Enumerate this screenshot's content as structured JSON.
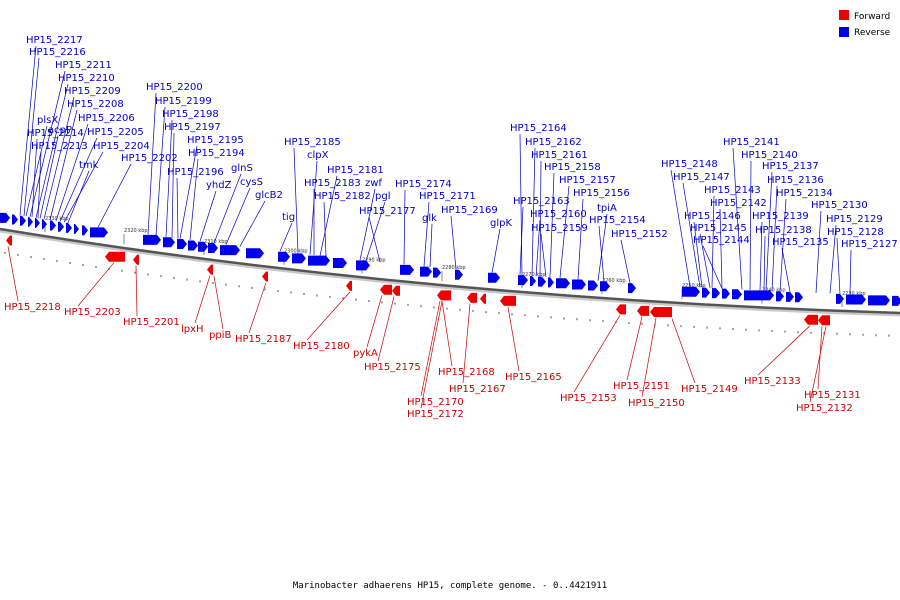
{
  "footer": "Marinobacter adhaerens HP15, complete genome. - 0..4421911",
  "legend": [
    {
      "label": "Forward",
      "color": "#ee0000"
    },
    {
      "label": "Reverse",
      "color": "#0000ee"
    }
  ],
  "colors": {
    "forward": "#ee0000",
    "reverse": "#0000ee",
    "backbone": "#555555"
  },
  "kbp_ticks": [
    "2330 kbp",
    "2320 kbp",
    "2310 kbp",
    "2300 kbp",
    "2290 kbp",
    "2280 kbp",
    "2270 kbp",
    "2260 kbp",
    "2250 kbp",
    "2240 kbp",
    "2230 kbp"
  ],
  "reverse_labels": [
    "HP15_2217",
    "HP15_2216",
    "HP15_2211",
    "HP15_2210",
    "HP15_2209",
    "HP15_2208",
    "plsX",
    "HP15_2206",
    "HP15_2214",
    "HP15_2205",
    "acpP",
    "HP15_2213",
    "HP15_2204",
    "tmk",
    "HP15_2202",
    "HP15_2200",
    "HP15_2199",
    "HP15_2198",
    "HP15_2197",
    "HP15_2195",
    "HP15_2194",
    "HP15_2196",
    "yhdZ",
    "glnS",
    "cysS",
    "glcB2",
    "tig",
    "HP15_2185",
    "clpX",
    "HP15_2181",
    "HP15_2183",
    "zwf",
    "HP15_2182",
    "pgl",
    "HP15_2177",
    "HP15_2174",
    "HP15_2171",
    "glk",
    "HP15_2169",
    "glpK",
    "HP15_2164",
    "HP15_2162",
    "HP15_2161",
    "HP15_2158",
    "HP15_2157",
    "HP15_2163",
    "HP15_2156",
    "HP15_2160",
    "tpiA",
    "HP15_2159",
    "HP15_2154",
    "HP15_2152",
    "HP15_2141",
    "HP15_2140",
    "HP15_2148",
    "HP15_2137",
    "HP15_2147",
    "HP15_2136",
    "HP15_2143",
    "HP15_2134",
    "HP15_2142",
    "HP15_2130",
    "HP15_2146",
    "HP15_2139",
    "HP15_2129",
    "HP15_2145",
    "HP15_2138",
    "HP15_2128",
    "HP15_2144",
    "HP15_2135",
    "HP15_2127"
  ],
  "forward_labels": [
    "HP15_2218",
    "HP15_2203",
    "HP15_2201",
    "lpxH",
    "ppiB",
    "HP15_2187",
    "HP15_2180",
    "pykA",
    "HP15_2175",
    "HP15_2168",
    "HP15_2167",
    "HP15_2170",
    "HP15_2172",
    "HP15_2165",
    "HP15_2153",
    "HP15_2151",
    "HP15_2150",
    "HP15_2149",
    "HP15_2133",
    "HP15_2131",
    "HP15_2132"
  ]
}
